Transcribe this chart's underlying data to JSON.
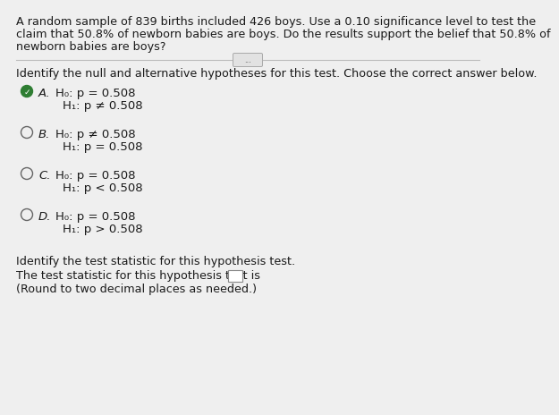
{
  "background_color": "#efefef",
  "header_line1": "A random sample of 839 births included 426 boys. Use a 0.10 significance level to test the",
  "header_line2": "claim that 50.8% of newborn babies are boys. Do the results support the belief that 50.8% of",
  "header_line3": "newborn babies are boys?",
  "divider_button_text": "...",
  "question1": "Identify the null and alternative hypotheses for this test. Choose the correct answer below.",
  "options": [
    {
      "letter": "A.",
      "line1": "H₀: p = 0.508",
      "line2": "H₁: p ≠ 0.508",
      "selected": true
    },
    {
      "letter": "B.",
      "line1": "H₀: p ≠ 0.508",
      "line2": "H₁: p = 0.508",
      "selected": false
    },
    {
      "letter": "C.",
      "line1": "H₀: p = 0.508",
      "line2": "H₁: p < 0.508",
      "selected": false
    },
    {
      "letter": "D.",
      "line1": "H₀: p = 0.508",
      "line2": "H₁: p > 0.508",
      "selected": false
    }
  ],
  "question2": "Identify the test statistic for this hypothesis test.",
  "answer_line": "The test statistic for this hypothesis test is",
  "answer_note": "(Round to two decimal places as needed.)",
  "text_color": "#1a1a1a",
  "header_font_size": 9.2,
  "body_font_size": 9.2,
  "option_font_size": 9.5,
  "checkmark_color": "#2e7d32",
  "circle_color": "#666666",
  "line_color": "#bbbbbb",
  "button_color": "#e2e2e2",
  "button_border": "#aaaaaa"
}
